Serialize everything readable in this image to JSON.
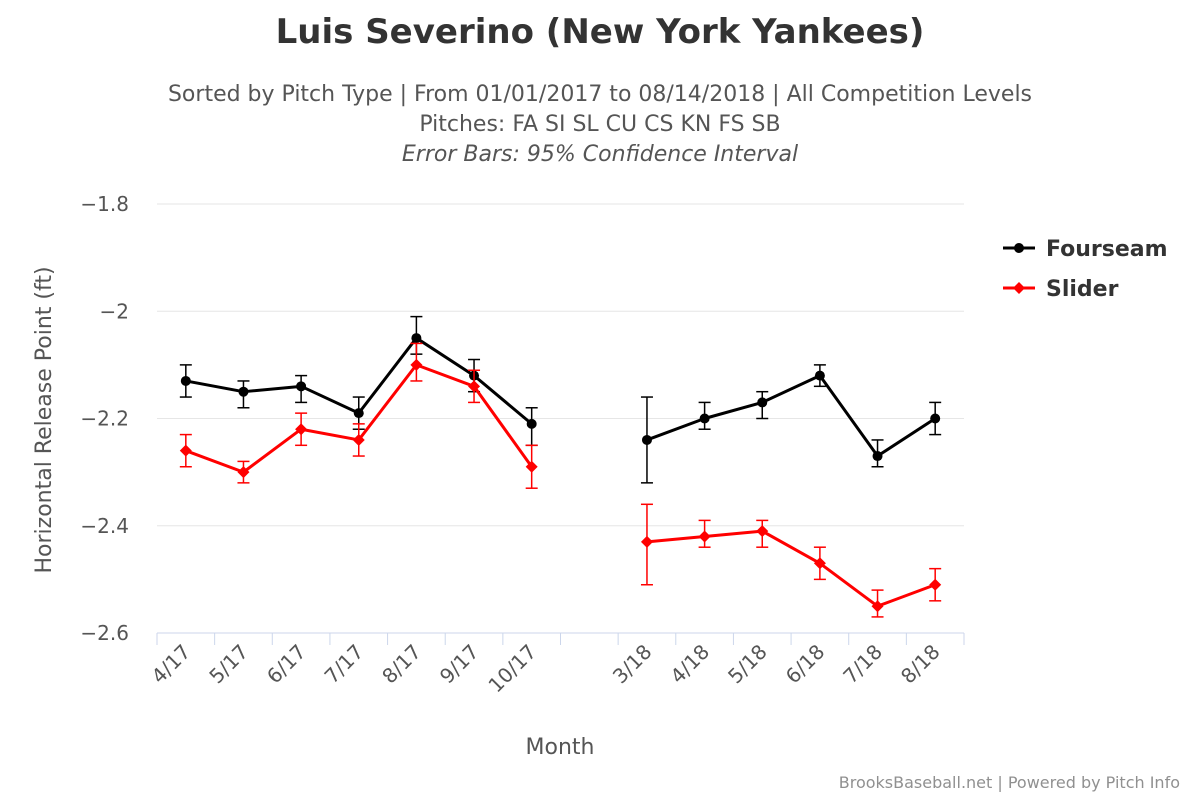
{
  "header": {
    "title": "Luis Severino (New York Yankees)",
    "subtitle_line1": "Sorted by Pitch Type | From 01/01/2017 to 08/14/2018 | All Competition Levels",
    "subtitle_line2": "Pitches: FA SI SL CU CS KN FS SB",
    "subtitle_line3": "Error Bars: 95% Confidence Interval"
  },
  "credits": "BrooksBaseball.net | Powered by Pitch Info",
  "chart_data": {
    "type": "line",
    "xlabel": "Month",
    "ylabel": "Horizontal Release Point (ft)",
    "ylim": [
      -2.6,
      -1.8
    ],
    "yticks": [
      -1.8,
      -2,
      -2.2,
      -2.4,
      -2.6
    ],
    "ytick_labels": [
      "−1.8",
      "−2",
      "−2.2",
      "−2.4",
      "−2.6"
    ],
    "categories": [
      "4/17",
      "5/17",
      "6/17",
      "7/17",
      "8/17",
      "9/17",
      "10/17",
      "",
      "3/18",
      "4/18",
      "5/18",
      "6/18",
      "7/18",
      "8/18"
    ],
    "grid": true,
    "legend_position": "right",
    "series": [
      {
        "name": "Fourseam",
        "color": "#000000",
        "marker": "circle",
        "values": [
          -2.13,
          -2.15,
          -2.14,
          -2.19,
          -2.05,
          -2.12,
          -2.21,
          null,
          -2.24,
          -2.2,
          -2.17,
          -2.12,
          -2.27,
          -2.2
        ],
        "err_low": [
          -2.16,
          -2.18,
          -2.17,
          -2.22,
          -2.08,
          -2.15,
          -2.25,
          null,
          -2.32,
          -2.22,
          -2.2,
          -2.14,
          -2.29,
          -2.23
        ],
        "err_high": [
          -2.1,
          -2.13,
          -2.12,
          -2.16,
          -2.01,
          -2.09,
          -2.18,
          null,
          -2.16,
          -2.17,
          -2.15,
          -2.1,
          -2.24,
          -2.17
        ]
      },
      {
        "name": "Slider",
        "color": "#ff0000",
        "marker": "diamond",
        "values": [
          -2.26,
          -2.3,
          -2.22,
          -2.24,
          -2.1,
          -2.14,
          -2.29,
          null,
          -2.43,
          -2.42,
          -2.41,
          -2.47,
          -2.55,
          -2.51
        ],
        "err_low": [
          -2.29,
          -2.32,
          -2.25,
          -2.27,
          -2.13,
          -2.17,
          -2.33,
          null,
          -2.51,
          -2.44,
          -2.44,
          -2.5,
          -2.57,
          -2.54
        ],
        "err_high": [
          -2.23,
          -2.28,
          -2.19,
          -2.21,
          -2.06,
          -2.11,
          -2.25,
          null,
          -2.36,
          -2.39,
          -2.39,
          -2.44,
          -2.52,
          -2.48
        ]
      }
    ]
  }
}
